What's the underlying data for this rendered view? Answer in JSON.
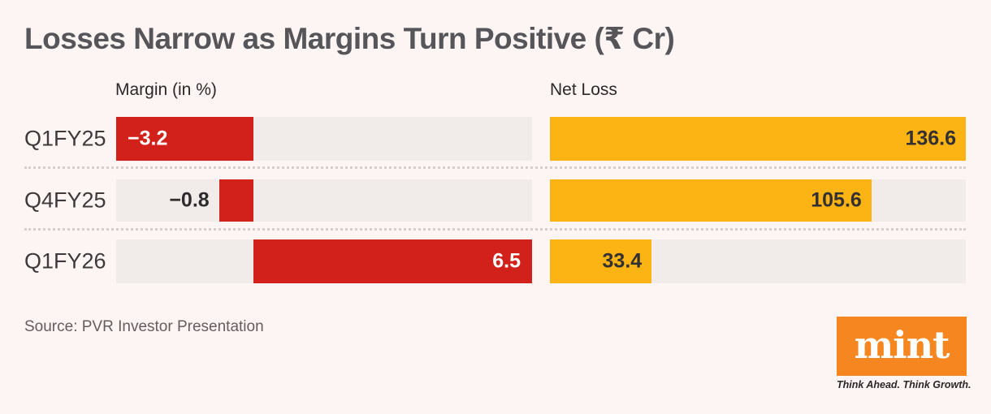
{
  "title": "Losses Narrow as Margins Turn Positive (₹ Cr)",
  "column_headers": {
    "margin": "Margin (in %)",
    "net_loss": "Net Loss"
  },
  "rows": [
    {
      "label": "Q1FY25",
      "margin": -3.2,
      "margin_label": "−3.2",
      "net_loss": 136.6,
      "net_loss_label": "136.6"
    },
    {
      "label": "Q4FY25",
      "margin": -0.8,
      "margin_label": "−0.8",
      "net_loss": 105.6,
      "net_loss_label": "105.6"
    },
    {
      "label": "Q1FY26",
      "margin": 6.5,
      "margin_label": "6.5",
      "net_loss": 33.4,
      "net_loss_label": "33.4"
    }
  ],
  "source": "Source: PVR Investor Presentation",
  "branding": {
    "logo": "mint",
    "tagline": "Think Ahead. Think Growth."
  },
  "colors": {
    "background": "#fdf5f3",
    "bar_red": "#d2201a",
    "bar_yellow": "#fcb415",
    "bar_track": "#f1ecea",
    "logo_orange": "#f6861f",
    "title_text": "#56565a"
  },
  "chart_data": {
    "type": "bar",
    "orientation": "horizontal",
    "title": "Losses Narrow as Margins Turn Positive (₹ Cr)",
    "categories": [
      "Q1FY25",
      "Q4FY25",
      "Q1FY26"
    ],
    "series": [
      {
        "name": "Margin (in %)",
        "values": [
          -3.2,
          -0.8,
          6.5
        ],
        "color": "#d2201a",
        "axis_range": [
          -3.2,
          6.5
        ]
      },
      {
        "name": "Net Loss (₹ Cr)",
        "values": [
          136.6,
          105.6,
          33.4
        ],
        "color": "#fcb415",
        "axis_range": [
          0,
          136.6
        ]
      }
    ],
    "grid": false,
    "legend_position": "column-headers-above-columns",
    "value_labels": "on-bars",
    "source": "Source: PVR Investor Presentation"
  }
}
